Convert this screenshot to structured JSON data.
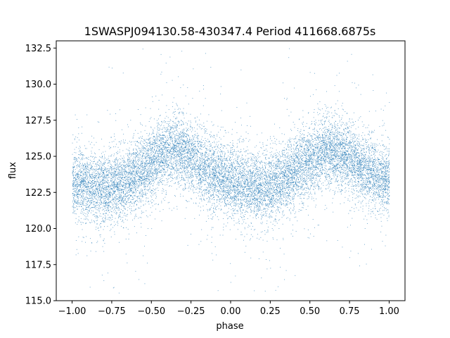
{
  "chart_data": {
    "type": "scatter",
    "title": "1SWASPJ094130.58-430347.4 Period 411668.6875s",
    "xlabel": "phase",
    "ylabel": "flux",
    "xlim": [
      -1.1,
      1.1
    ],
    "ylim": [
      115.0,
      133.0
    ],
    "xticks": [
      -1.0,
      -0.75,
      -0.5,
      -0.25,
      0.0,
      0.25,
      0.5,
      0.75,
      1.0
    ],
    "xtick_labels": [
      "−1.00",
      "−0.75",
      "−0.50",
      "−0.25",
      "0.00",
      "0.25",
      "0.50",
      "0.75",
      "1.00"
    ],
    "yticks": [
      115.0,
      117.5,
      120.0,
      122.5,
      125.0,
      127.5,
      130.0,
      132.5
    ],
    "ytick_labels": [
      "115.0",
      "117.5",
      "120.0",
      "122.5",
      "125.0",
      "127.5",
      "130.0",
      "132.5"
    ],
    "grid": false,
    "point_color": "#1f77b4",
    "trend": {
      "phase": [
        -1.0,
        -0.9,
        -0.8,
        -0.7,
        -0.6,
        -0.5,
        -0.4,
        -0.3,
        -0.2,
        -0.1,
        0.0,
        0.1,
        0.2,
        0.3,
        0.4,
        0.5,
        0.6,
        0.7,
        0.8,
        0.9,
        1.0
      ],
      "flux": [
        123.3,
        123.0,
        122.8,
        123.0,
        123.8,
        124.6,
        125.4,
        125.3,
        124.5,
        123.8,
        123.3,
        123.0,
        122.8,
        123.2,
        124.0,
        124.8,
        125.4,
        125.2,
        124.6,
        123.8,
        123.3
      ]
    },
    "scatter_width": 1.2,
    "outlier_range": [
      115.5,
      132.5
    ],
    "point_count": 14000,
    "outlier_fraction": 0.06
  }
}
